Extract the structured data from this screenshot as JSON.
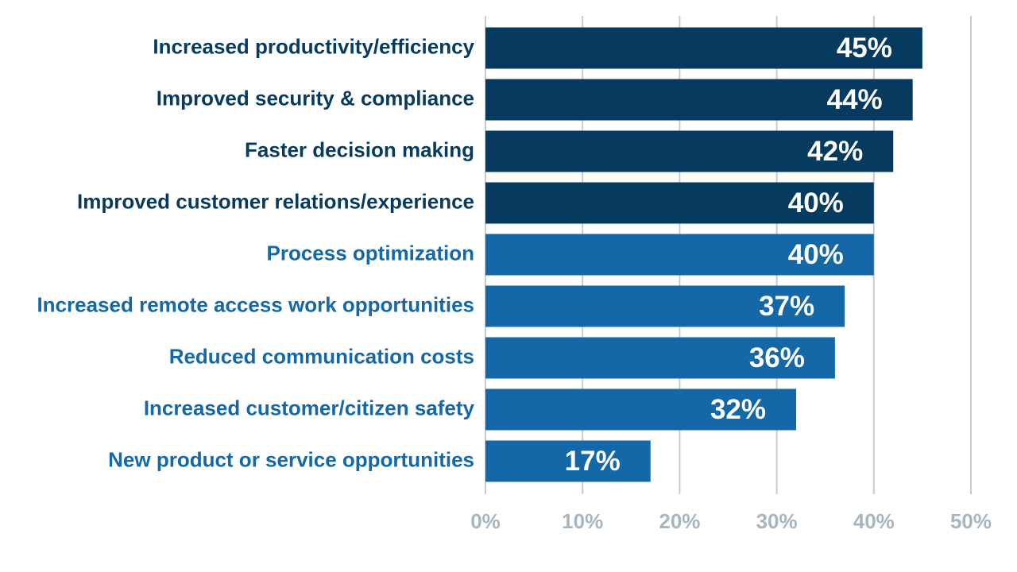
{
  "chart_data": {
    "type": "bar",
    "orientation": "horizontal",
    "categories": [
      "Increased productivity/efficiency",
      "Improved security & compliance",
      "Faster decision making",
      "Improved customer relations/experience",
      "Process optimization",
      "Increased remote access work opportunities",
      "Reduced communication costs",
      "Increased customer/citizen safety",
      "New product or service opportunities"
    ],
    "values": [
      45,
      44,
      42,
      40,
      40,
      37,
      36,
      32,
      17
    ],
    "value_labels": [
      "45%",
      "44%",
      "42%",
      "40%",
      "40%",
      "37%",
      "36%",
      "32%",
      "17%"
    ],
    "colors": [
      "#063b5f",
      "#063b5f",
      "#063b5f",
      "#063b5f",
      "#1468a7",
      "#1468a7",
      "#1468a7",
      "#1468a7",
      "#1468a7"
    ],
    "xlim": [
      0,
      50
    ],
    "xticks": [
      {
        "value": 0,
        "label": "0%"
      },
      {
        "value": 10,
        "label": "10%"
      },
      {
        "value": 20,
        "label": "20%"
      },
      {
        "value": 30,
        "label": "30%"
      },
      {
        "value": 40,
        "label": "40%"
      },
      {
        "value": 50,
        "label": "50%"
      }
    ],
    "grid": true,
    "grid_color": "#c5ccd2",
    "tick_label_color": "#a8b5bf",
    "value_label_color": "#ffffff"
  }
}
